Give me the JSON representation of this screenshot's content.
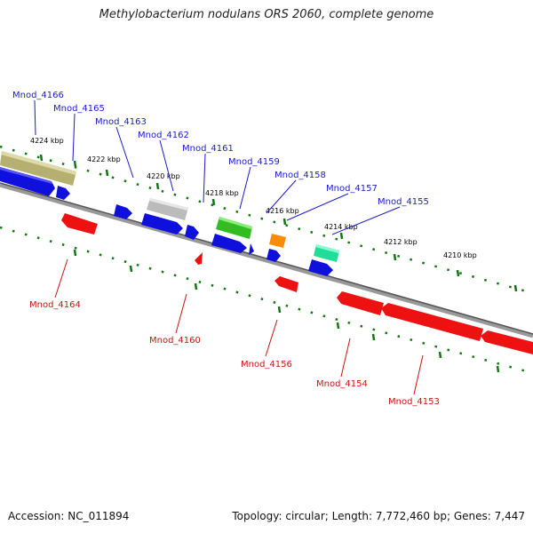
{
  "title": "Methylobacterium nodulans ORS 2060, complete genome",
  "footer": {
    "accession": "Accession: NC_011894",
    "summary": "Topology: circular; Length: 7,772,460 bp; Genes: 7,447"
  },
  "kbp_ticks": [
    "4224 kbp",
    "4222 kbp",
    "4220 kbp",
    "4218 kbp",
    "4216 kbp",
    "4214 kbp",
    "4212 kbp",
    "4210 kbp"
  ],
  "gene_labels_top": [
    "Mnod_4166",
    "Mnod_4165",
    "Mnod_4163",
    "Mnod_4162",
    "Mnod_4161",
    "Mnod_4159",
    "Mnod_4158",
    "Mnod_4157",
    "Mnod_4155"
  ],
  "gene_labels_bottom": [
    "Mnod_4164",
    "Mnod_4160",
    "Mnod_4156",
    "Mnod_4154",
    "Mnod_4153"
  ],
  "colors": {
    "label_top": "#1a1acc",
    "label_bottom": "#cc1111",
    "forward_gene": "#1010dd",
    "reverse_gene": "#ee1111",
    "olive_gene": "#b5b070",
    "gray_gene": "#bbbbbb",
    "green_gene": "#33bb22",
    "orange_gene": "#ff8c00",
    "teal_gene": "#22dd99",
    "backbone": "#777777",
    "tick": "#117711"
  }
}
